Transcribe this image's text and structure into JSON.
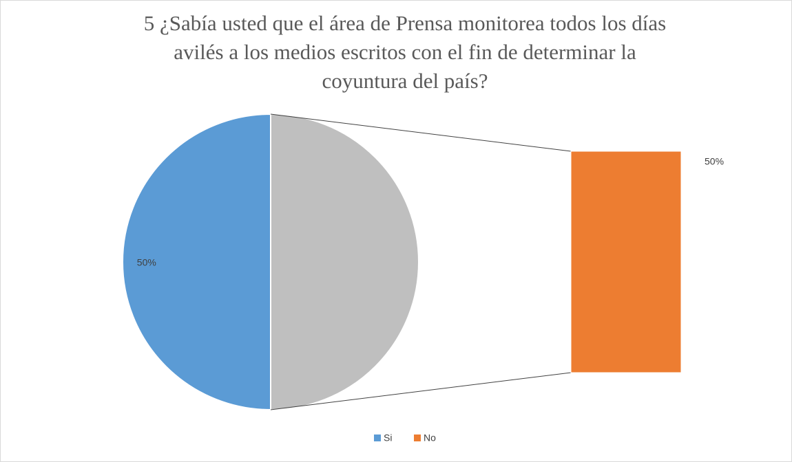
{
  "chart_data": {
    "type": "pie",
    "title": [
      "5 ¿Sabía usted que el área de Prensa monitorea todos los días",
      "avilés a los medios escritos con el fin de determinar la",
      "coyuntura del país?"
    ],
    "categories": [
      "Si",
      "No"
    ],
    "values": [
      50,
      50
    ],
    "value_labels": [
      "50%",
      "50%"
    ],
    "colors": [
      "#5b9bd5",
      "#ed7d31"
    ],
    "secondary_color": "#bfbfbf",
    "legend": "bottom"
  }
}
